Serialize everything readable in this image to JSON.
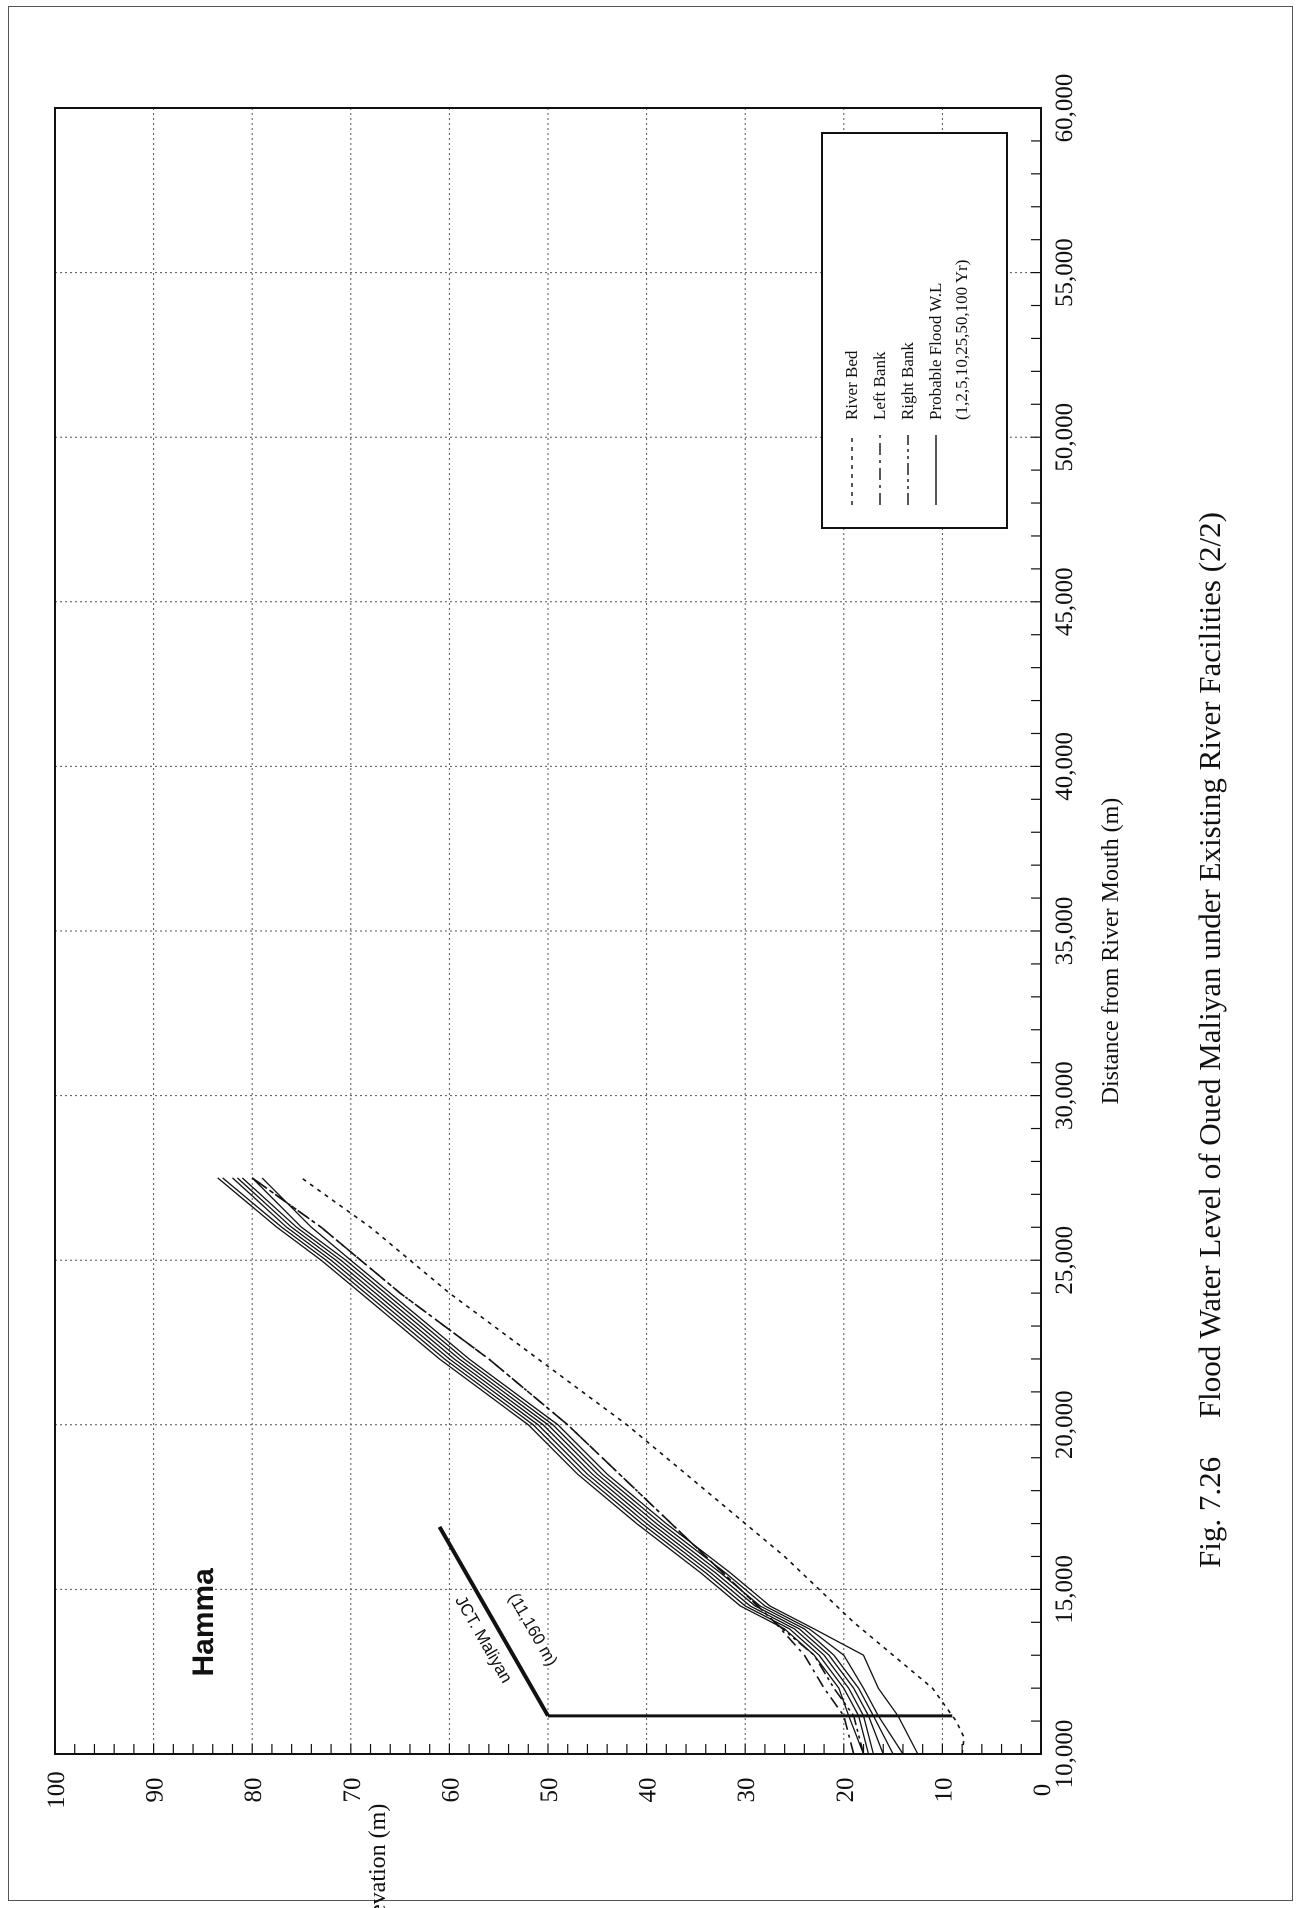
{
  "chart_data": {
    "type": "line",
    "caption": "Fig. 7.26     Flood Water Level of Oued Maliyan under Existing River Facilities (2/2)",
    "xlabel": "Distance from River Mouth (m)",
    "ylabel": "Elevation (m)",
    "xlim": [
      10000,
      60000
    ],
    "ylim": [
      0,
      100
    ],
    "x_ticks": [
      10000,
      15000,
      20000,
      25000,
      30000,
      35000,
      40000,
      45000,
      50000,
      55000,
      60000
    ],
    "x_tick_labels": [
      "10,000",
      "15,000",
      "20,000",
      "25,000",
      "30,000",
      "35,000",
      "40,000",
      "45,000",
      "50,000",
      "55,000",
      "60,000"
    ],
    "y_ticks": [
      0,
      10,
      20,
      30,
      40,
      50,
      60,
      70,
      80,
      90,
      100
    ],
    "y_tick_labels": [
      "0",
      "10",
      "20",
      "30",
      "40",
      "50",
      "60",
      "70",
      "80",
      "90",
      "100"
    ],
    "grid": true,
    "legend_position": "bottom-right",
    "legend": [
      {
        "label": "River Bed",
        "style": "dotted"
      },
      {
        "label": "Left Bank",
        "style": "dash-dot"
      },
      {
        "label": "Right Bank",
        "style": "dash-dot-dot"
      },
      {
        "label": "Probable Flood W.L",
        "style": "solid"
      },
      {
        "label": "(1,2,5,10,25,50,100 Yr)",
        "style": "none"
      }
    ],
    "annotations": [
      {
        "text": "Hamma",
        "x": 14000,
        "y": 84
      },
      {
        "text": "JCT. Maliyan",
        "x": 13400,
        "y": 57
      },
      {
        "text": "(11,160 m)",
        "x": 13700,
        "y": 52
      }
    ],
    "junction_marker": {
      "x": 11160,
      "vertical_y": [
        9,
        50
      ],
      "diagonal": {
        "x": [
          11160,
          16900
        ],
        "y": [
          50,
          61
        ]
      }
    },
    "series": [
      {
        "name": "River Bed",
        "style": "dotted",
        "x": [
          10000,
          10500,
          11000,
          11160,
          12000,
          13000,
          14000,
          16000,
          18000,
          20000,
          22000,
          24000,
          26000,
          27500
        ],
        "y": [
          8,
          7.8,
          8.6,
          9,
          11,
          15,
          19,
          26,
          34,
          42,
          51,
          60,
          68,
          75
        ]
      },
      {
        "name": "Left Bank",
        "style": "dash-dot",
        "x": [
          10000,
          11160,
          12000,
          13000,
          14000,
          16000,
          18000,
          20000,
          22000,
          24000,
          26000,
          27500
        ],
        "y": [
          19,
          20,
          22,
          24,
          27,
          34,
          41,
          48,
          56,
          65,
          73,
          80
        ]
      },
      {
        "name": "Right Bank",
        "style": "dash-dot-dot",
        "x": [
          10000,
          11160,
          12000,
          13000,
          14000,
          16000,
          18000,
          20000,
          22000,
          24000,
          26000,
          27500
        ],
        "y": [
          18,
          19,
          21,
          23,
          27,
          34,
          41,
          48,
          56,
          65,
          73,
          80
        ]
      },
      {
        "name": "W.L 1 Yr",
        "style": "solid",
        "x": [
          10000,
          11160,
          12000,
          13000,
          13800,
          14500,
          15500,
          17000,
          18500,
          20000,
          21000,
          22000,
          23000,
          24000,
          25000,
          26000,
          27500
        ],
        "y": [
          12.5,
          14.5,
          16.5,
          18,
          23,
          27.5,
          31.5,
          38,
          44,
          49,
          53.5,
          58,
          62,
          66,
          70,
          74,
          79
        ]
      },
      {
        "name": "W.L 2 Yr",
        "style": "solid",
        "x": [
          10000,
          11160,
          12000,
          13000,
          13800,
          14500,
          15500,
          17000,
          18500,
          20000,
          21000,
          22000,
          23000,
          24000,
          25000,
          26000,
          27500
        ],
        "y": [
          14,
          16.5,
          18,
          20,
          23.5,
          28,
          32,
          38.5,
          44.5,
          49.5,
          54,
          58.5,
          62.5,
          66.5,
          70.5,
          75,
          80
        ]
      },
      {
        "name": "W.L 5 Yr",
        "style": "solid",
        "x": [
          10000,
          11160,
          12000,
          13000,
          13800,
          14500,
          15500,
          17000,
          18500,
          20000,
          21000,
          22000,
          23000,
          24000,
          25000,
          26000,
          27500
        ],
        "y": [
          15,
          17,
          18.5,
          21,
          24,
          28.5,
          32.5,
          39,
          45,
          50,
          54.5,
          59,
          63,
          67,
          71,
          75.5,
          81
        ]
      },
      {
        "name": "W.L 10 Yr",
        "style": "solid",
        "x": [
          10000,
          11160,
          12000,
          13000,
          13800,
          14500,
          15500,
          17000,
          18500,
          20000,
          21000,
          22000,
          23000,
          24000,
          25000,
          26000,
          27500
        ],
        "y": [
          16,
          17.5,
          19,
          21.5,
          24.5,
          29,
          33,
          39.5,
          45.5,
          50.5,
          55,
          59.5,
          63.5,
          67.5,
          71.5,
          76,
          81.5
        ]
      },
      {
        "name": "W.L 25 Yr",
        "style": "solid",
        "x": [
          10000,
          11160,
          12000,
          13000,
          13800,
          14500,
          15500,
          17000,
          18500,
          20000,
          21000,
          22000,
          23000,
          24000,
          25000,
          26000,
          27500
        ],
        "y": [
          17,
          18,
          19.5,
          22,
          25,
          29.5,
          33.5,
          40,
          46,
          51,
          55.5,
          60,
          64,
          68,
          72,
          76.5,
          82
        ]
      },
      {
        "name": "W.L 50 Yr",
        "style": "solid",
        "x": [
          10000,
          11160,
          12000,
          13000,
          13800,
          14500,
          15500,
          17000,
          18500,
          20000,
          21000,
          22000,
          23000,
          24000,
          25000,
          26000,
          27500
        ],
        "y": [
          17.5,
          18.5,
          20,
          22.5,
          25.5,
          30,
          34,
          40.5,
          46.5,
          51.5,
          56,
          60.5,
          64.5,
          68.5,
          72.5,
          77,
          83
        ]
      },
      {
        "name": "W.L 100 Yr",
        "style": "solid",
        "x": [
          10000,
          11160,
          12000,
          13000,
          13800,
          14500,
          15500,
          17000,
          18500,
          20000,
          21000,
          22000,
          23000,
          24000,
          25000,
          26000,
          27500
        ],
        "y": [
          18,
          19.5,
          20.5,
          23,
          26,
          30.5,
          34.5,
          41,
          47,
          52,
          56.5,
          61,
          65,
          69,
          73,
          77.5,
          83.5
        ]
      }
    ]
  },
  "colors": {
    "ink": "#111111",
    "grid": "#555555",
    "background": "#ffffff"
  }
}
